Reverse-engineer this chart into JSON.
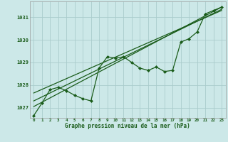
{
  "background_color": "#cce8e8",
  "plot_bg_color": "#cce8e8",
  "grid_color": "#aacccc",
  "line_color": "#1a5c1a",
  "xlabel": "Graphe pression niveau de la mer (hPa)",
  "x_ticks": [
    0,
    1,
    2,
    3,
    4,
    5,
    6,
    7,
    8,
    9,
    10,
    11,
    12,
    13,
    14,
    15,
    16,
    17,
    18,
    19,
    20,
    21,
    22,
    23
  ],
  "y_ticks": [
    1027,
    1028,
    1029,
    1030,
    1031
  ],
  "ylim": [
    1026.55,
    1031.7
  ],
  "xlim": [
    -0.5,
    23.5
  ],
  "main_data": [
    1026.65,
    1027.2,
    1027.8,
    1027.9,
    1027.75,
    1027.55,
    1027.4,
    1027.3,
    1028.75,
    1029.25,
    1029.2,
    1029.25,
    1029.0,
    1028.75,
    1028.65,
    1028.8,
    1028.6,
    1028.65,
    1029.9,
    1030.05,
    1030.35,
    1031.15,
    1031.3,
    1031.45
  ],
  "trend_line1_x": [
    0,
    23
  ],
  "trend_line1_y": [
    1027.05,
    1031.45
  ],
  "trend_line2_x": [
    0,
    23
  ],
  "trend_line2_y": [
    1027.3,
    1031.35
  ],
  "trend_line3_x": [
    0,
    23
  ],
  "trend_line3_y": [
    1027.65,
    1031.3
  ]
}
